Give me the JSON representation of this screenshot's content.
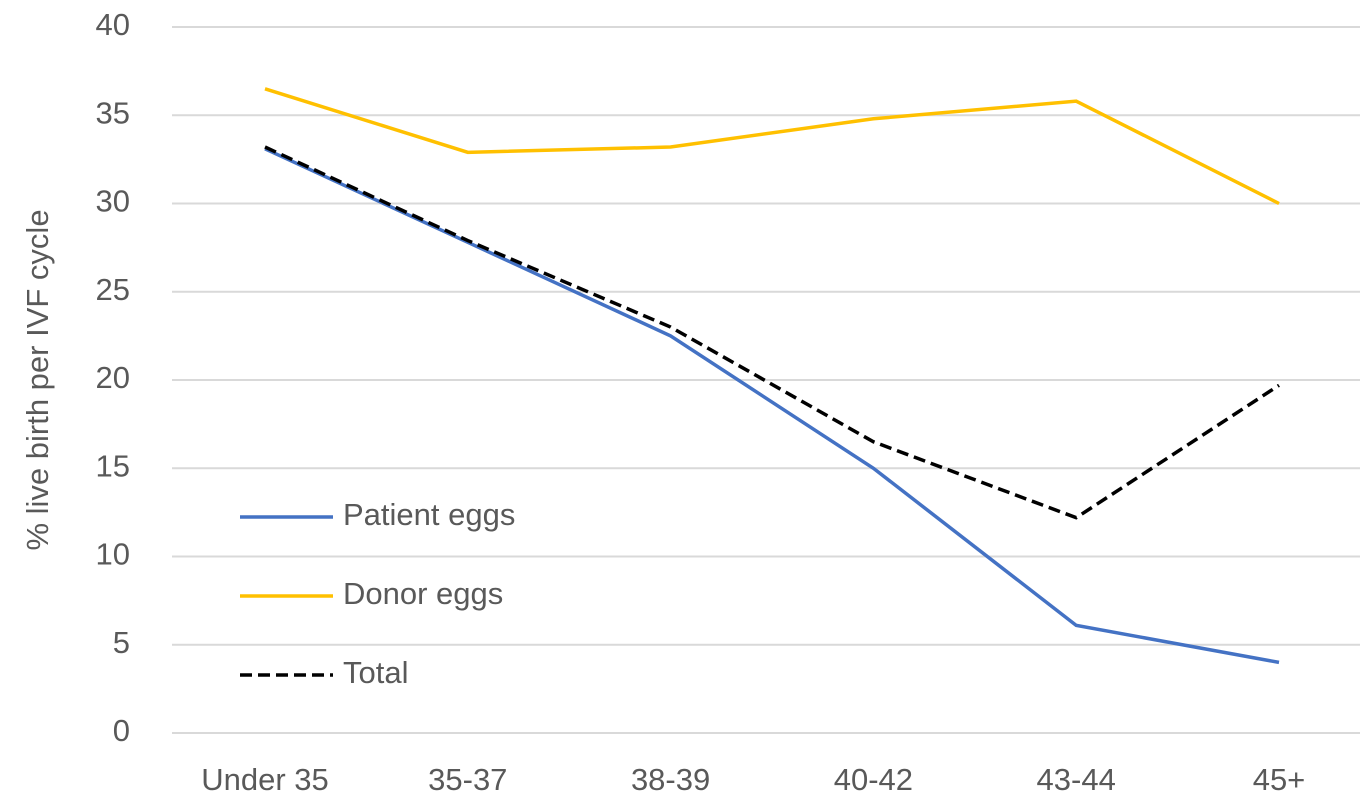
{
  "chart_data": {
    "type": "line",
    "y_label": "% live birth per IVF cycle",
    "categories": [
      "Under 35",
      "35-37",
      "38-39",
      "40-42",
      "43-44",
      "45+"
    ],
    "series": [
      {
        "name": "Patient eggs",
        "color": "#4472c4",
        "values": [
          33.1,
          27.8,
          22.5,
          15.0,
          6.1,
          4.0
        ]
      },
      {
        "name": "Donor eggs",
        "color": "#ffc000",
        "values": [
          36.5,
          32.9,
          33.2,
          34.8,
          35.8,
          30.0
        ]
      },
      {
        "name": "Total",
        "color": "#000000",
        "dashed": true,
        "values": [
          33.2,
          27.9,
          23.0,
          16.5,
          12.2,
          19.7
        ]
      }
    ],
    "ylim": [
      0,
      40
    ],
    "yticks": [
      0,
      5,
      10,
      15,
      20,
      25,
      30,
      35,
      40
    ],
    "grid": true
  }
}
